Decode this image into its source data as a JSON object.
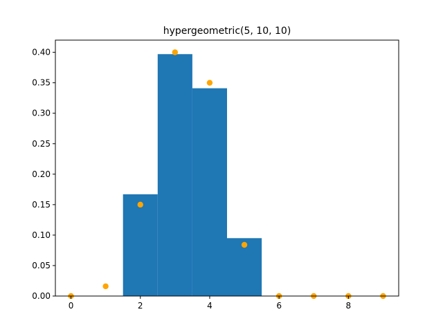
{
  "chart_data": {
    "type": "bar",
    "title": "hypergeometric(5, 10, 10)",
    "xlabel": "",
    "ylabel": "",
    "xlim": [
      -0.45,
      9.45
    ],
    "ylim": [
      0,
      0.42
    ],
    "x_ticks": [
      0,
      2,
      4,
      6,
      8
    ],
    "y_ticks": [
      0.0,
      0.05,
      0.1,
      0.15,
      0.2,
      0.25,
      0.3,
      0.35,
      0.4
    ],
    "y_tick_labels": [
      "0.00",
      "0.05",
      "0.10",
      "0.15",
      "0.20",
      "0.25",
      "0.30",
      "0.35",
      "0.40"
    ],
    "grid": false,
    "series": [
      {
        "kind": "histogram",
        "color": "#1f77b4",
        "bins": [
          {
            "x0": 1.5,
            "x1": 2.5,
            "value": 0.167
          },
          {
            "x0": 2.5,
            "x1": 3.5,
            "value": 0.397
          },
          {
            "x0": 3.5,
            "x1": 4.5,
            "value": 0.341
          },
          {
            "x0": 4.5,
            "x1": 5.5,
            "value": 0.095
          }
        ]
      },
      {
        "kind": "scatter",
        "color": "#ffa500",
        "x": [
          0,
          1,
          2,
          3,
          4,
          5,
          6,
          7,
          8,
          9
        ],
        "y": [
          0.0,
          0.016,
          0.15,
          0.4,
          0.35,
          0.084,
          0.0,
          0.0,
          0.0,
          0.0
        ]
      }
    ]
  }
}
